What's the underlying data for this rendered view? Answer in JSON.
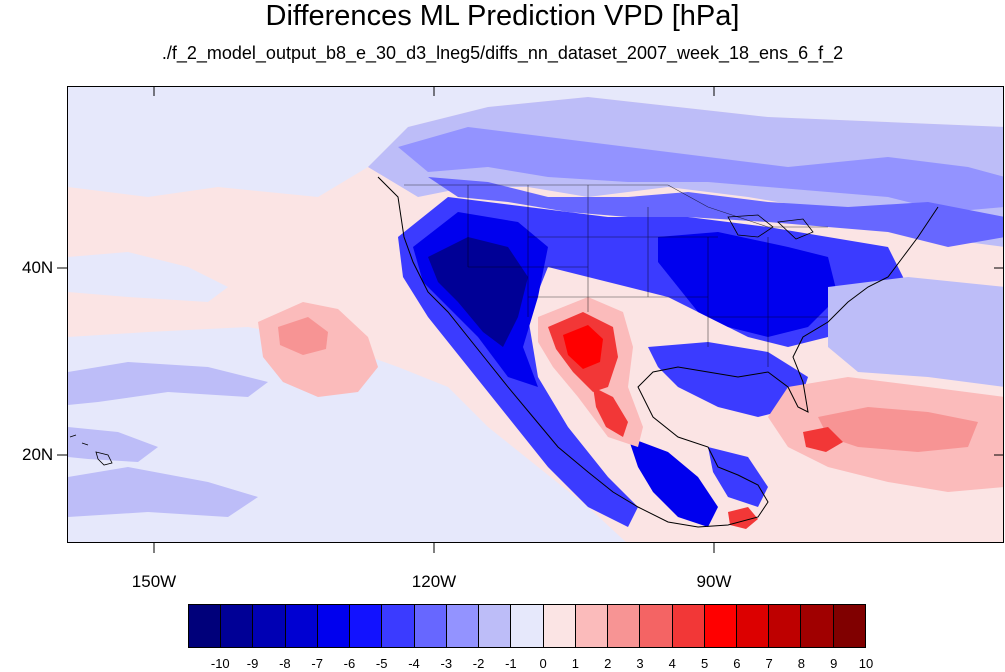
{
  "title": "Differences ML Prediction VPD [hPa]",
  "subtitle": "./f_2_model_output_b8_e_30_d3_lneg5/diffs_nn_dataset_2007_week_18_ens_6_f_2",
  "lat_labels": [
    "40N",
    "20N"
  ],
  "lon_labels": [
    "150W",
    "120W",
    "90W"
  ],
  "colorbar": {
    "labels": [
      "-10",
      "-9",
      "-8",
      "-7",
      "-6",
      "-5",
      "-4",
      "-3",
      "-2",
      "-1",
      "0",
      "1",
      "2",
      "3",
      "4",
      "5",
      "6",
      "7",
      "8",
      "9",
      "10"
    ],
    "colors": [
      "#00007a",
      "#000096",
      "#0000b4",
      "#0000d2",
      "#0000ee",
      "#1212ff",
      "#3b3bff",
      "#6767ff",
      "#9393ff",
      "#bdbdf8",
      "#e6e8fb",
      "#fbe4e4",
      "#fbbbbb",
      "#f79494",
      "#f46464",
      "#f23737",
      "#ff0000",
      "#dc0000",
      "#be0000",
      "#a00000",
      "#800000"
    ]
  },
  "map_colors": {
    "ocean_background": "#fbe4e4",
    "light_blue": "#e6e8fb",
    "pale_blue": "#bdbdf8",
    "mid_blue": "#9393ff",
    "blue": "#6767ff",
    "strong_blue": "#3b3bff",
    "deep_blue": "#0000ee",
    "navy": "#000096",
    "light_red": "#fbbbbb",
    "mid_red": "#f79494",
    "red": "#f23737",
    "bright_red": "#ff0000",
    "dark_red": "#be0000",
    "coastline": "#000000"
  }
}
